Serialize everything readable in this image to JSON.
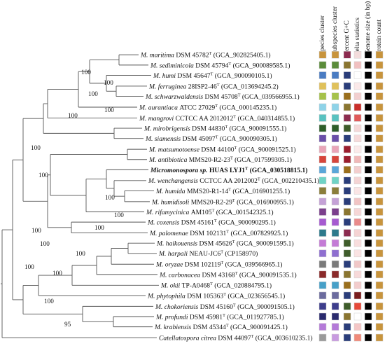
{
  "headers": [
    "Species cluster",
    "Subspecies cluster",
    "Percent G+C",
    "delta statistics",
    "Genome size (in bp)",
    "Protein count"
  ],
  "taxa": [
    {
      "genus": "M.",
      "species": "maritima",
      "rest": "DSM 45782",
      "acc": "(GCA_902825405.1)",
      "bold": false,
      "sup": "T"
    },
    {
      "genus": "M.",
      "species": "sediminicola",
      "rest": "DSM 45794",
      "acc": "(GCA_900089585.1)",
      "bold": false,
      "sup": "T"
    },
    {
      "genus": "M.",
      "species": "humi",
      "rest": "DSM 45647",
      "acc": "(GCA_900090105.1)",
      "bold": false,
      "sup": "T"
    },
    {
      "genus": "M.",
      "species": "ferruginea",
      "rest": "28ISP2-46",
      "acc": "(GCA_013694245.2)",
      "bold": false,
      "sup": "T"
    },
    {
      "genus": "M.",
      "species": "schwarzwaldensis",
      "rest": "DSM 45708",
      "acc": "(GCA_039566955.1)",
      "bold": false,
      "sup": "T"
    },
    {
      "genus": "M.",
      "species": "aurantiaca",
      "rest": "ATCC 27029",
      "acc": "(GCA_000145235.1)",
      "bold": false,
      "sup": "T"
    },
    {
      "genus": "M.",
      "species": "mangrovi",
      "rest": "CCTCC AA 2012012",
      "acc": "(GCA_040314855.1)",
      "bold": false,
      "sup": "T"
    },
    {
      "genus": "M.",
      "species": "mirobrigensis",
      "rest": "DSM 44830",
      "acc": "(GCA_900091555.1)",
      "bold": false,
      "sup": "T"
    },
    {
      "genus": "M.",
      "species": "siamensis",
      "rest": "DSM 45097",
      "acc": "(GCA_900090305.1)",
      "bold": false,
      "sup": "T"
    },
    {
      "genus": "M.",
      "species": "matsumotoense",
      "rest": "DSM 44100",
      "acc": "(GCA_900091525.1)",
      "bold": false,
      "sup": "T"
    },
    {
      "genus": "M.",
      "species": "antibiotica",
      "rest": "MMS20-R2-23",
      "acc": "(GCA_017599305.1)",
      "bold": false,
      "sup": "T"
    },
    {
      "genus": "Micromonospora",
      "species": "sp.",
      "rest": "HUAS LYJ1",
      "acc": "(GCA_030518815.1)",
      "bold": true,
      "sup": "T"
    },
    {
      "genus": "M.",
      "species": "wenchangensis",
      "rest": "CCTCC AA 2012002",
      "acc": "(GCA_002210435.1)",
      "bold": false,
      "sup": "T"
    },
    {
      "genus": "M.",
      "species": "humida",
      "rest": "MMS20-R1-14",
      "acc": "(GCA_016901255.1)",
      "bold": false,
      "sup": "T"
    },
    {
      "genus": "M.",
      "species": "humidisoli",
      "rest": "MMS20-R2-29",
      "acc": "(GCA_016900955.1)",
      "bold": false,
      "sup": "T"
    },
    {
      "genus": "M.",
      "species": "rifamycinica",
      "rest": "AM105",
      "acc": "(GCA_001542325.1)",
      "bold": false,
      "sup": "T"
    },
    {
      "genus": "M.",
      "species": "coxensis",
      "rest": "DSM 45161",
      "acc": "(GCA_900090295.1)",
      "bold": false,
      "sup": "T"
    },
    {
      "genus": "M.",
      "species": "palomenae",
      "rest": "DSM 102131",
      "acc": "(GCA_007829925.1)",
      "bold": false,
      "sup": "T"
    },
    {
      "genus": "M.",
      "species": "haikouensis",
      "rest": "DSM 45626",
      "acc": "(GCA_900091595.1)",
      "bold": false,
      "sup": "T"
    },
    {
      "genus": "M.",
      "species": "harpali",
      "rest": "NEAU-JC6",
      "acc": "(CP158970)",
      "bold": false,
      "sup": "T"
    },
    {
      "genus": "M.",
      "species": "oryzae",
      "rest": "DSM 102119",
      "acc": "(GCA_039566965.1)",
      "bold": false,
      "sup": "T"
    },
    {
      "genus": "M.",
      "species": "carbonacea",
      "rest": "DSM 43168",
      "acc": "(GCA_900091535.1)",
      "bold": false,
      "sup": "T"
    },
    {
      "genus": "M.",
      "species": "okii",
      "rest": "TP-A0468",
      "acc": "(GCA_020884795.1)",
      "bold": false,
      "sup": "T"
    },
    {
      "genus": "M.",
      "species": "phytophila",
      "rest": "DSM 105363",
      "acc": "(GCA_023656545.1)",
      "bold": false,
      "sup": "T"
    },
    {
      "genus": "M.",
      "species": "chokoriensis",
      "rest": "DSM 45160",
      "acc": "(GCA_900091505.1)",
      "bold": false,
      "sup": "T"
    },
    {
      "genus": "M.",
      "species": "profundi",
      "rest": "DSM 45981",
      "acc": "(GCA_011927785.1)",
      "bold": false,
      "sup": "T"
    },
    {
      "genus": "M.",
      "species": "krabiensis",
      "rest": "DSM 45344",
      "acc": "(GCA_900091425.1)",
      "bold": false,
      "sup": "T"
    },
    {
      "genus": "",
      "species": "Catellatospora citrea",
      "rest": "DSM 44097",
      "acc": "(GCA_003610235.1)",
      "bold": false,
      "sup": "T"
    }
  ],
  "bootstrap": [
    "100",
    "100",
    "100",
    "100",
    "100",
    "100",
    "100",
    "100",
    "100",
    "100",
    "100",
    "100",
    "100",
    "100",
    "100",
    "100",
    "95"
  ],
  "color_matrix": [
    [
      "#c8943c",
      "#c8943c",
      "#8c2b4f",
      "#f3dcdc",
      "#000000",
      "#c8943c"
    ],
    [
      "#5b8c3a",
      "#5b8c3a",
      "#8a7530",
      "#f1c0c0",
      "#000000",
      "#c8943c"
    ],
    [
      "#4a7cc2",
      "#4a7cc2",
      "#2a3d7a",
      "#ffffff",
      "#000000",
      "#c8943c"
    ],
    [
      "#e0c15a",
      "#e0c15a",
      "#2a3d7a",
      "#fbe9e9",
      "#000000",
      "#c8943c"
    ],
    [
      "#a6c24a",
      "#a6c24a",
      "#9a6f1d",
      "#f2cfcf",
      "#000000",
      "#c8943c"
    ],
    [
      "#8ed3e8",
      "#8ed3e8",
      "#8a7530",
      "#c92f2a",
      "#000000",
      "#c8943c"
    ],
    [
      "#59c2c0",
      "#59c2c0",
      "#8c2b4f",
      "#e05a5a",
      "#000000",
      "#c8943c"
    ],
    [
      "#2e5e2a",
      "#2e5e2a",
      "#3e5c2a",
      "#f5d8d8",
      "#000000",
      "#c8943c"
    ],
    [
      "#6a4fa8",
      "#6a4fa8",
      "#2a3d7a",
      "#f7dada",
      "#000000",
      "#c8943c"
    ],
    [
      "#e9a5b8",
      "#e9a5b8",
      "#9a1e2e",
      "#fbeaea",
      "#000000",
      "#c8943c"
    ],
    [
      "#d6453b",
      "#d6453b",
      "#9a1e2e",
      "#f0b8b8",
      "#000000",
      "#c8943c"
    ],
    [
      "#5aa6d8",
      "#5aa6d8",
      "#9a6f1d",
      "#f3cece",
      "#000000",
      "#c8943c"
    ],
    [
      "#6fd3c6",
      "#6fd3c6",
      "#2a3d7a",
      "#f4d4d4",
      "#000000",
      "#c8943c"
    ],
    [
      "#8a7e3a",
      "#8a7e3a",
      "#2a3d7a",
      "#fae5e5",
      "#000000",
      "#c8943c"
    ],
    [
      "#c4a1d6",
      "#c4a1d6",
      "#2a3d7a",
      "#f1c4c4",
      "#000000",
      "#c8943c"
    ],
    [
      "#7b3f8c",
      "#7b3f8c",
      "#8a7530",
      "#f6d6d6",
      "#000000",
      "#c8943c"
    ],
    [
      "#a65ad0",
      "#a65ad0",
      "#2a3d7a",
      "#e98a8a",
      "#000000",
      "#c8943c"
    ],
    [
      "#2e7a8c",
      "#2e7a8c",
      "#8c2b4f",
      "#f5d3d3",
      "#000000",
      "#c8943c"
    ],
    [
      "#c47bd6",
      "#c47bd6",
      "#3e5c2a",
      "#f8dddd",
      "#000000",
      "#c8943c"
    ],
    [
      "#8f6fd0",
      "#8f6fd0",
      "#3e5c2a",
      "#fae3e3",
      "#000000",
      "#c8943c"
    ],
    [
      "#7a7a7a",
      "#7a7a7a",
      "#2a3d7a",
      "#f1c8c8",
      "#000000",
      "#c8943c"
    ],
    [
      "#8a2a2a",
      "#8a2a2a",
      "#8a7530",
      "#f7d9d9",
      "#000000",
      "#c8943c"
    ],
    [
      "#47a0c8",
      "#47a0c8",
      "#9a6f1d",
      "#f2cccc",
      "#000000",
      "#c8943c"
    ],
    [
      "#6b6b9e",
      "#6b6b9e",
      "#2a3d7a",
      "#7a1e1e",
      "#000000",
      "#c8943c"
    ],
    [
      "#3d3d8c",
      "#3d3d8c",
      "#3e5c2a",
      "#e64a3a",
      "#000000",
      "#c8943c"
    ],
    [
      "#2a2a6e",
      "#2a2a6e",
      "#8a7530",
      "#ffffff",
      "#000000",
      "#c8943c"
    ],
    [
      "#b47ad8",
      "#b47ad8",
      "#2a3d7a",
      "#f4c6c6",
      "#000000",
      "#c8943c"
    ],
    [
      "#9a9a9a",
      "#c89be0",
      "#2a3d7a",
      "#f08a7a",
      "#000000",
      "#c8943c"
    ]
  ]
}
